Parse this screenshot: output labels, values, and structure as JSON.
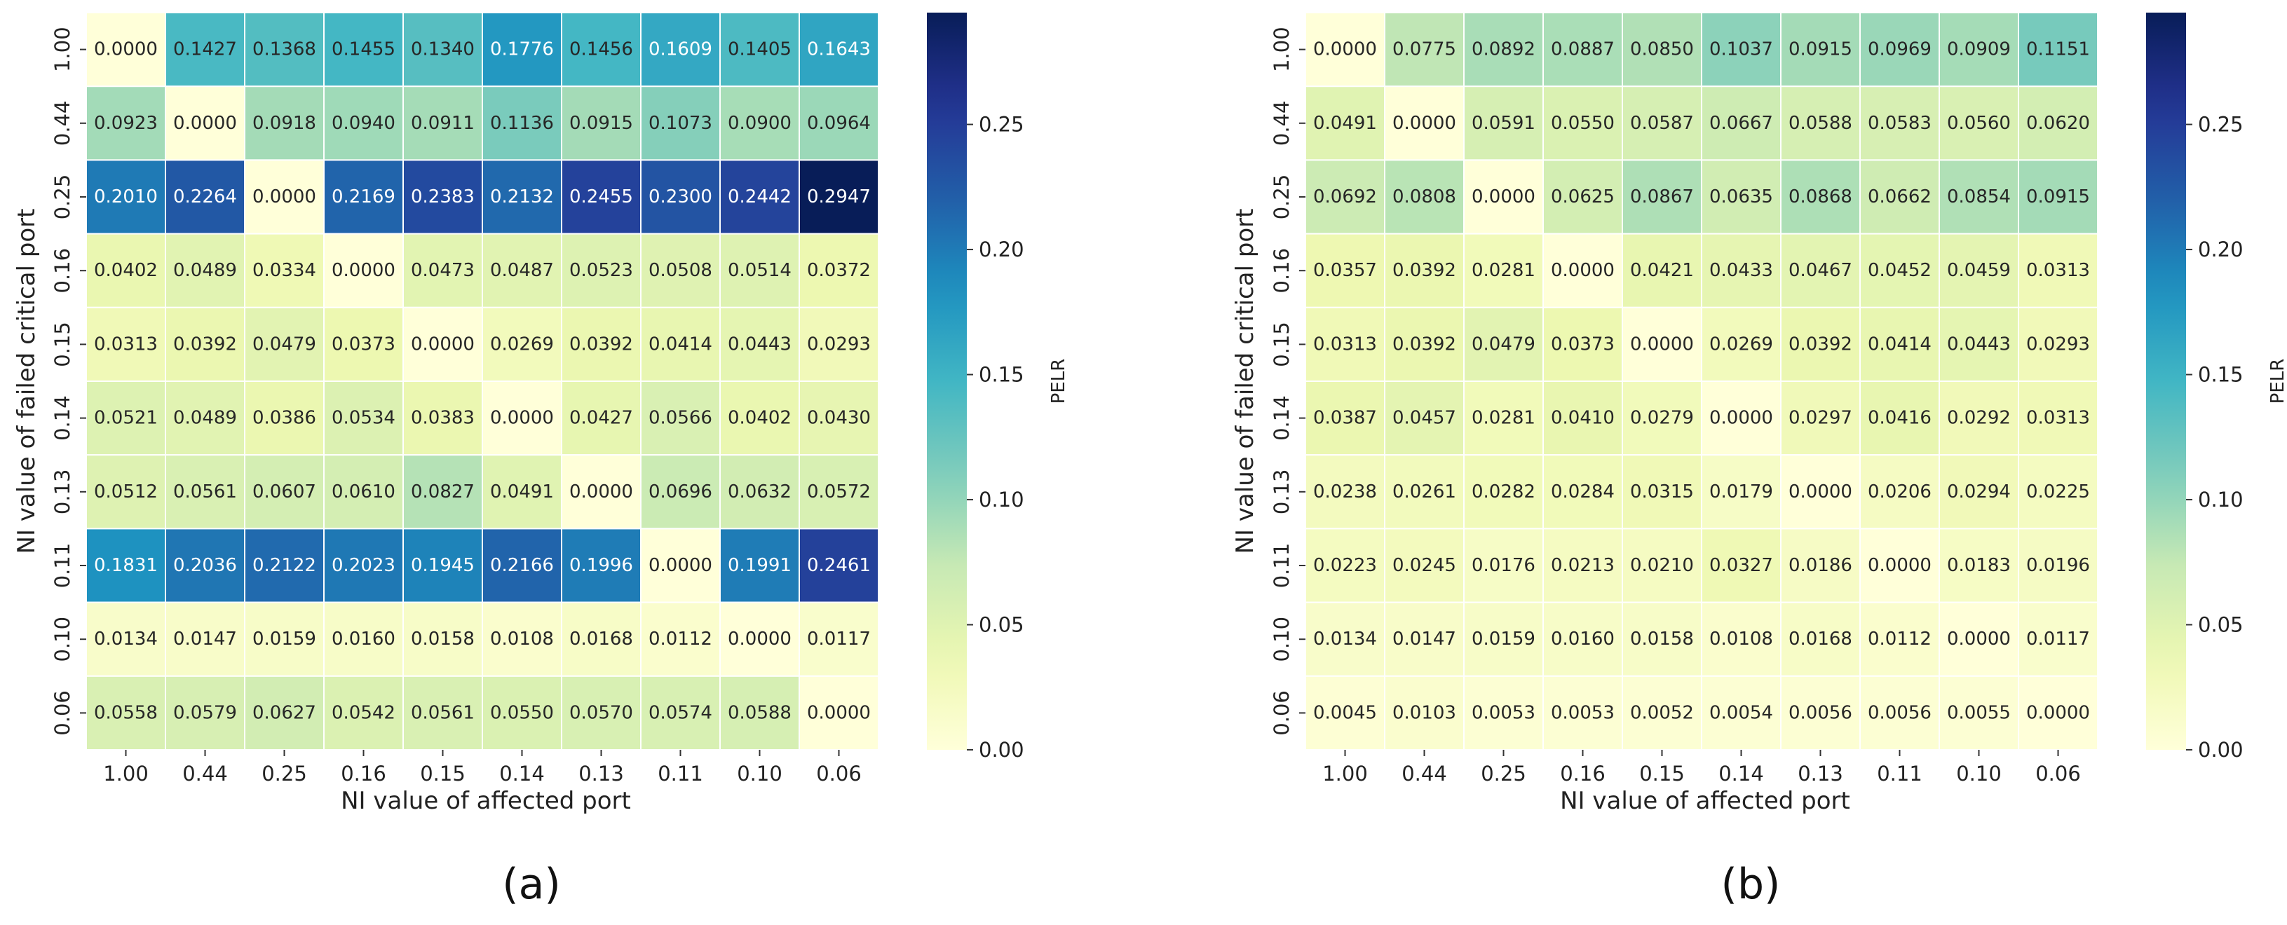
{
  "chart_data": [
    {
      "type": "heatmap",
      "panel_label": "(a)",
      "xlabel": "NI value of affected port",
      "ylabel": "NI value of failed critical port",
      "x_categories": [
        "1.00",
        "0.44",
        "0.25",
        "0.16",
        "0.15",
        "0.14",
        "0.13",
        "0.11",
        "0.10",
        "0.06"
      ],
      "y_categories": [
        "1.00",
        "0.44",
        "0.25",
        "0.16",
        "0.15",
        "0.14",
        "0.13",
        "0.11",
        "0.10",
        "0.06"
      ],
      "values": [
        [
          0.0,
          0.1427,
          0.1368,
          0.1455,
          0.134,
          0.1776,
          0.1456,
          0.1609,
          0.1405,
          0.1643
        ],
        [
          0.0923,
          0.0,
          0.0918,
          0.094,
          0.0911,
          0.1136,
          0.0915,
          0.1073,
          0.09,
          0.0964
        ],
        [
          0.201,
          0.2264,
          0.0,
          0.2169,
          0.2383,
          0.2132,
          0.2455,
          0.23,
          0.2442,
          0.2947
        ],
        [
          0.0402,
          0.0489,
          0.0334,
          0.0,
          0.0473,
          0.0487,
          0.0523,
          0.0508,
          0.0514,
          0.0372
        ],
        [
          0.0313,
          0.0392,
          0.0479,
          0.0373,
          0.0,
          0.0269,
          0.0392,
          0.0414,
          0.0443,
          0.0293
        ],
        [
          0.0521,
          0.0489,
          0.0386,
          0.0534,
          0.0383,
          0.0,
          0.0427,
          0.0566,
          0.0402,
          0.043
        ],
        [
          0.0512,
          0.0561,
          0.0607,
          0.061,
          0.0827,
          0.0491,
          0.0,
          0.0696,
          0.0632,
          0.0572
        ],
        [
          0.1831,
          0.2036,
          0.2122,
          0.2023,
          0.1945,
          0.2166,
          0.1996,
          0.0,
          0.1991,
          0.2461
        ],
        [
          0.0134,
          0.0147,
          0.0159,
          0.016,
          0.0158,
          0.0108,
          0.0168,
          0.0112,
          0.0,
          0.0117
        ],
        [
          0.0558,
          0.0579,
          0.0627,
          0.0542,
          0.0561,
          0.055,
          0.057,
          0.0574,
          0.0588,
          0.0
        ]
      ],
      "colorbar": {
        "label": "PELR",
        "vmin": 0,
        "vmax": 0.2947,
        "ticks": [
          "0.00",
          "0.05",
          "0.10",
          "0.15",
          "0.20",
          "0.25"
        ],
        "tick_values": [
          0,
          0.05,
          0.1,
          0.15,
          0.2,
          0.25
        ]
      }
    },
    {
      "type": "heatmap",
      "panel_label": "(b)",
      "xlabel": "NI value of affected port",
      "ylabel": "NI value of failed critical port",
      "x_categories": [
        "1.00",
        "0.44",
        "0.25",
        "0.16",
        "0.15",
        "0.14",
        "0.13",
        "0.11",
        "0.10",
        "0.06"
      ],
      "y_categories": [
        "1.00",
        "0.44",
        "0.25",
        "0.16",
        "0.15",
        "0.14",
        "0.13",
        "0.11",
        "0.10",
        "0.06"
      ],
      "values": [
        [
          0.0,
          0.0775,
          0.0892,
          0.0887,
          0.085,
          0.1037,
          0.0915,
          0.0969,
          0.0909,
          0.1151
        ],
        [
          0.0491,
          0.0,
          0.0591,
          0.055,
          0.0587,
          0.0667,
          0.0588,
          0.0583,
          0.056,
          0.062
        ],
        [
          0.0692,
          0.0808,
          0.0,
          0.0625,
          0.0867,
          0.0635,
          0.0868,
          0.0662,
          0.0854,
          0.0915
        ],
        [
          0.0357,
          0.0392,
          0.0281,
          0.0,
          0.0421,
          0.0433,
          0.0467,
          0.0452,
          0.0459,
          0.0313
        ],
        [
          0.0313,
          0.0392,
          0.0479,
          0.0373,
          0.0,
          0.0269,
          0.0392,
          0.0414,
          0.0443,
          0.0293
        ],
        [
          0.0387,
          0.0457,
          0.0281,
          0.041,
          0.0279,
          0.0,
          0.0297,
          0.0416,
          0.0292,
          0.0313
        ],
        [
          0.0238,
          0.0261,
          0.0282,
          0.0284,
          0.0315,
          0.0179,
          0.0,
          0.0206,
          0.0294,
          0.0225
        ],
        [
          0.0223,
          0.0245,
          0.0176,
          0.0213,
          0.021,
          0.0327,
          0.0186,
          0.0,
          0.0183,
          0.0196
        ],
        [
          0.0134,
          0.0147,
          0.0159,
          0.016,
          0.0158,
          0.0108,
          0.0168,
          0.0112,
          0.0,
          0.0117
        ],
        [
          0.0045,
          0.0103,
          0.0053,
          0.0053,
          0.0052,
          0.0054,
          0.0056,
          0.0056,
          0.0055,
          0.0
        ]
      ],
      "colorbar": {
        "label": "PELR",
        "vmin": 0,
        "vmax": 0.2947,
        "ticks": [
          "0.00",
          "0.05",
          "0.10",
          "0.15",
          "0.20",
          "0.25"
        ],
        "tick_values": [
          0,
          0.05,
          0.1,
          0.15,
          0.2,
          0.25
        ]
      }
    }
  ]
}
